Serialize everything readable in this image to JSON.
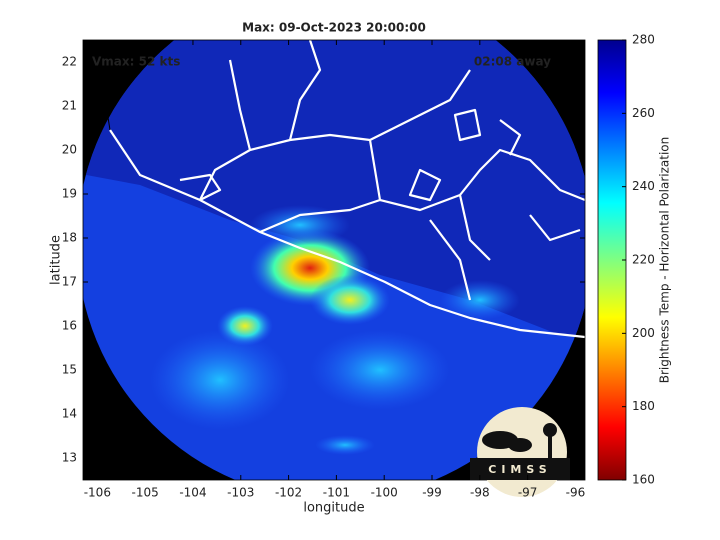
{
  "chart_data": {
    "type": "map",
    "title": "Max: 09-Oct-2023 20:00:00",
    "annotations": [
      "Vmax: 52 kts",
      "02:08 away"
    ],
    "xlabel": "longitude",
    "ylabel": "latitude",
    "xlim": [
      -106.3,
      -95.8
    ],
    "xticks": [
      -106,
      -105,
      -104,
      -103,
      -102,
      -101,
      -100,
      -99,
      -98,
      -97,
      -96
    ],
    "ylim": [
      12.5,
      22.5
    ],
    "yticks": [
      13,
      14,
      15,
      16,
      17,
      18,
      19,
      20,
      21,
      22
    ],
    "colorbar": {
      "label": "Brightness Temp - Horizontal Polarization",
      "lim": [
        160,
        280
      ],
      "ticks": [
        160,
        180,
        200,
        220,
        240,
        260,
        280
      ]
    }
  },
  "logo": "CIMSS"
}
